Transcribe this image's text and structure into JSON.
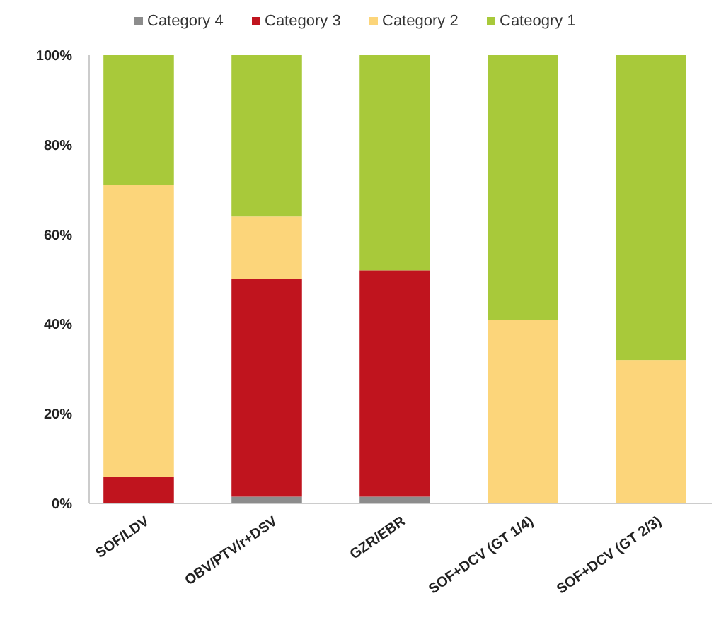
{
  "chart_data": {
    "type": "bar",
    "stacked": true,
    "categories": [
      "SOF/LDV",
      "OBV/PTV/r+DSV",
      "GZR/EBR",
      "SOF+DCV (GT 1/4)",
      "SOF+DCV (GT 2/3)"
    ],
    "series": [
      {
        "name": "Category 4",
        "color": "#8c8c8c",
        "values": [
          0,
          1.5,
          1.5,
          0,
          0
        ]
      },
      {
        "name": "Category 3",
        "color": "#c0141e",
        "values": [
          6,
          48.5,
          50.5,
          0,
          0
        ]
      },
      {
        "name": "Category 2",
        "color": "#fcd57a",
        "values": [
          65,
          14,
          0,
          41,
          32
        ]
      },
      {
        "name": "Cateogry 1",
        "color": "#a8c93a",
        "values": [
          29,
          36,
          48,
          59,
          68
        ]
      }
    ],
    "ylim": [
      0,
      100
    ],
    "yticks": [
      {
        "value": 0,
        "label": "0%"
      },
      {
        "value": 20,
        "label": "20%"
      },
      {
        "value": 40,
        "label": "40%"
      },
      {
        "value": 60,
        "label": "60%"
      },
      {
        "value": 80,
        "label": "80%"
      },
      {
        "value": 100,
        "label": "100%"
      }
    ],
    "grid": false,
    "legend": "top"
  }
}
